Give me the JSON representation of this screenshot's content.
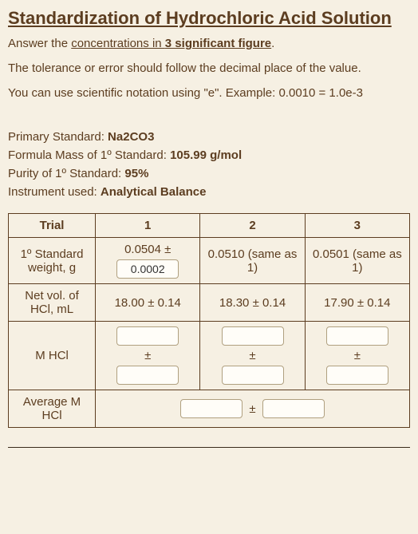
{
  "title": "Standardization of Hydrochloric Acid Solution",
  "instr1_pre": "Answer the ",
  "instr1_underline": "concentrations in ",
  "instr1_bold": "3 significant figure",
  "instr1_post": ".",
  "instr2": "The tolerance or error should follow the decimal place of the value.",
  "instr3": "You can use scientific notation using \"e\". Example: 0.0010 = 1.0e-3",
  "info": {
    "primary_label": "Primary Standard: ",
    "primary_value": "Na2CO3",
    "mass_label": "Formula Mass of 1º Standard: ",
    "mass_value": "105.99 g/mol",
    "purity_label": "Purity of 1º Standard: ",
    "purity_value": "95%",
    "instrument_label": "Instrument used: ",
    "instrument_value": "Analytical Balance"
  },
  "table": {
    "headers": {
      "trial": "Trial",
      "c1": "1",
      "c2": "2",
      "c3": "3"
    },
    "row_std": {
      "label": "1º Standard weight, g",
      "c1_value": "0.0504 ±",
      "c1_input": "0.0002",
      "c2": "0.0510 (same as 1)",
      "c3": "0.0501 (same as 1)"
    },
    "row_netvol": {
      "label": "Net vol. of HCl, mL",
      "c1": "18.00 ± 0.14",
      "c2": "18.30 ± 0.14",
      "c3": "17.90 ± 0.14"
    },
    "row_mhcl": {
      "label": "M HCl",
      "pm": "±"
    },
    "row_avg": {
      "label": "Average M HCl",
      "pm": "±"
    }
  }
}
